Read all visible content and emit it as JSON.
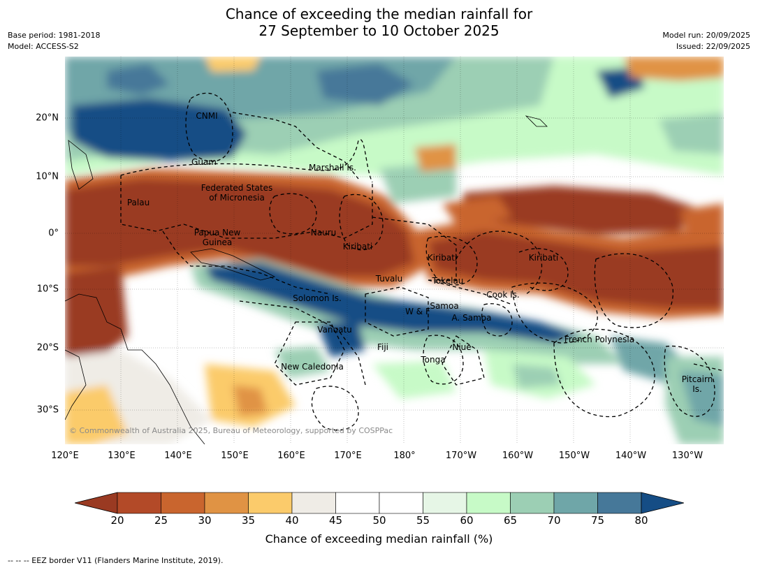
{
  "title": {
    "line1": "Chance of exceeding the median rainfall for",
    "line2": "27 September to 10 October 2025"
  },
  "meta_left": {
    "base_period": "Base period: 1981-2018",
    "model": "Model: ACCESS-S2"
  },
  "meta_right": {
    "model_run": "Model run: 20/09/2025",
    "issued": "Issued: 22/09/2025"
  },
  "map": {
    "lon_ticks": [
      "120°E",
      "130°E",
      "140°E",
      "150°E",
      "160°E",
      "170°E",
      "180°",
      "170°W",
      "160°W",
      "150°W",
      "140°W",
      "130°W"
    ],
    "lat_ticks": [
      "20°N",
      "10°N",
      "0°",
      "10°S",
      "20°S",
      "30°S"
    ],
    "labels": {
      "cnmi": "CNMI",
      "guam": "Guam",
      "marshall": "Marshall Is.",
      "fsm1": "Federated States",
      "fsm2": "of Micronesia",
      "palau": "Palau",
      "png1": "Papua New",
      "png2": "Guinea",
      "nauru": "Nauru",
      "kiribati_w": "Kiribati",
      "kiribati_c": "Kiribati",
      "kiribati_e": "Kiribati",
      "tuvalu": "Tuvalu",
      "tokelau": "Tokelau",
      "cook": "Cook Is.",
      "solomon": "Solomon Is.",
      "samoa": "Samoa",
      "wf": "W & F",
      "asamoa": "A. Samoa",
      "vanuatu": "Vanuatu",
      "fiji": "Fiji",
      "niue": "Niue",
      "tonga": "Tonga",
      "frenchpoly": "French Polynesia",
      "newcal": "New Caledonia",
      "pitcairn1": "Pitcairn",
      "pitcairn2": "Is."
    },
    "copyright": "© Commonwealth of Australia 2025, Bureau of Meteorology, supported by COSPPac"
  },
  "colorbar": {
    "ticks": [
      "20",
      "25",
      "30",
      "35",
      "40",
      "45",
      "50",
      "55",
      "60",
      "65",
      "70",
      "75",
      "80"
    ],
    "colors": [
      "#9a3a22",
      "#b34a28",
      "#c9652e",
      "#e09344",
      "#fbcb6b",
      "#efece6",
      "#ffffff",
      "#ffffff",
      "#e6f6e6",
      "#c7fac7",
      "#9ccfb4",
      "#6fa6a8",
      "#467899",
      "#154d85"
    ],
    "label": "Chance of exceeding median rainfall (%)"
  },
  "footnote": "--  --  -- EEZ border V11 (Flanders Marine Institute, 2019)."
}
